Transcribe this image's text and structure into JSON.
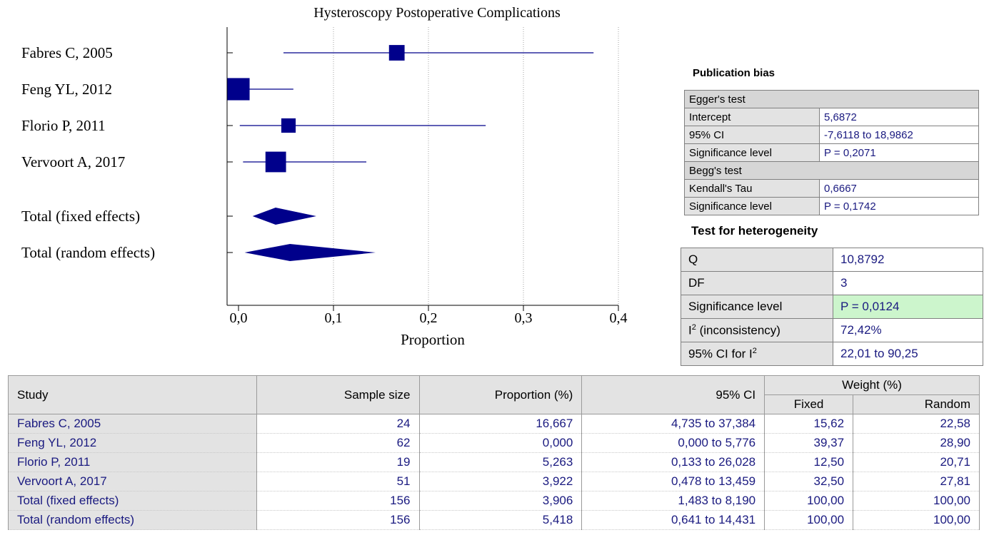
{
  "chart_data": {
    "type": "forest",
    "title": "Hysteroscopy Postoperative Complications",
    "xlabel": "Proportion",
    "xlim": [
      0,
      0.4
    ],
    "ticks": [
      "0,0",
      "0,1",
      "0,2",
      "0,3",
      "0,4"
    ],
    "tick_values": [
      0,
      0.1,
      0.2,
      0.3,
      0.4
    ],
    "grid": "vertical dotted",
    "marker_color": "#00008b",
    "studies": [
      {
        "label": "Fabres C, 2005",
        "estimate": 0.16667,
        "lo": 0.04735,
        "hi": 0.37384,
        "weight": 15.62
      },
      {
        "label": "Feng YL, 2012",
        "estimate": 0.0,
        "lo": 0.0,
        "hi": 0.05776,
        "weight": 39.37
      },
      {
        "label": "Florio P, 2011",
        "estimate": 0.05263,
        "lo": 0.00133,
        "hi": 0.26028,
        "weight": 12.5
      },
      {
        "label": "Vervoort A, 2017",
        "estimate": 0.03922,
        "lo": 0.00478,
        "hi": 0.13459,
        "weight": 32.5
      }
    ],
    "totals": [
      {
        "label": "Total (fixed effects)",
        "estimate": 0.03906,
        "lo": 0.01483,
        "hi": 0.0819
      },
      {
        "label": "Total (random effects)",
        "estimate": 0.05418,
        "lo": 0.00641,
        "hi": 0.14431
      }
    ]
  },
  "publication_bias": {
    "title": "Publication bias",
    "egger_header": "Egger's test",
    "egger_rows": [
      {
        "label": "Intercept",
        "value": "5,6872"
      },
      {
        "label": "95% CI",
        "value": "-7,6118 to 18,9862"
      },
      {
        "label": "Significance level",
        "value": "P = 0,2071"
      }
    ],
    "begg_header": "Begg's test",
    "begg_rows": [
      {
        "label": "Kendall's Tau",
        "value": "0,6667"
      },
      {
        "label": "Significance level",
        "value": "P = 0,1742"
      }
    ]
  },
  "heterogeneity": {
    "title": "Test for heterogeneity",
    "q_label": "Q",
    "q_value": "10,8792",
    "df_label": "DF",
    "df_value": "3",
    "sig_label": "Significance level",
    "sig_value": "P = 0,0124",
    "i2_label_prefix": "I",
    "i2_label_sup": "2",
    "i2_label_suffix": " (inconsistency)",
    "i2_value": "72,42%",
    "ci_label_prefix": "95% CI for I",
    "ci_label_sup": "2",
    "ci_value": "22,01 to 90,25",
    "highlight_color": "#ccf5cc"
  },
  "results_table": {
    "headers": {
      "study": "Study",
      "sample_size": "Sample size",
      "proportion": "Proportion (%)",
      "ci": "95% CI",
      "weight": "Weight (%)",
      "fixed": "Fixed",
      "random": "Random"
    },
    "rows": [
      {
        "study": "Fabres C, 2005",
        "n": "24",
        "prop": "16,667",
        "ci": "4,735 to 37,384",
        "fixed": "15,62",
        "random": "22,58"
      },
      {
        "study": "Feng YL, 2012",
        "n": "62",
        "prop": "0,000",
        "ci": "0,000 to 5,776",
        "fixed": "39,37",
        "random": "28,90"
      },
      {
        "study": "Florio P, 2011",
        "n": "19",
        "prop": "5,263",
        "ci": "0,133 to 26,028",
        "fixed": "12,50",
        "random": "20,71"
      },
      {
        "study": "Vervoort A, 2017",
        "n": "51",
        "prop": "3,922",
        "ci": "0,478 to 13,459",
        "fixed": "32,50",
        "random": "27,81"
      },
      {
        "study": "Total (fixed effects)",
        "n": "156",
        "prop": "3,906",
        "ci": "1,483 to 8,190",
        "fixed": "100,00",
        "random": "100,00"
      },
      {
        "study": "Total (random effects)",
        "n": "156",
        "prop": "5,418",
        "ci": "0,641 to 14,431",
        "fixed": "100,00",
        "random": "100,00"
      }
    ]
  }
}
